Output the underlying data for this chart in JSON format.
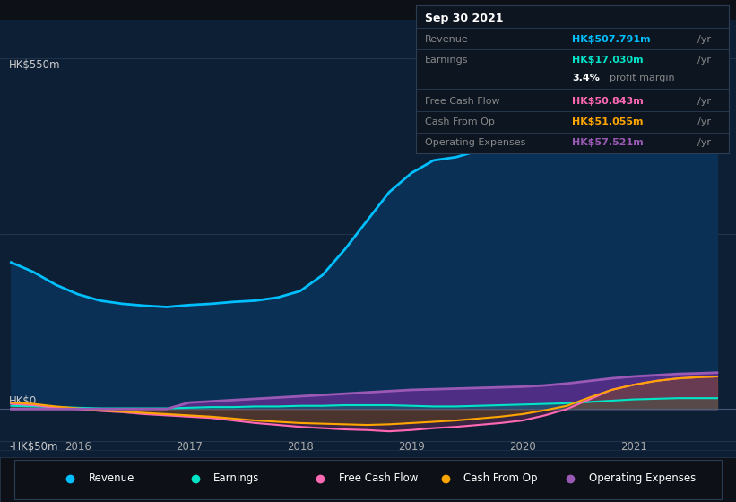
{
  "bg_color": "#0d1117",
  "plot_bg_color": "#0d1f35",
  "ylabel_top": "HK$550m",
  "ylabel_zero": "HK$0",
  "ylabel_neg": "-HK$50m",
  "x_years": [
    2015.4,
    2015.6,
    2015.8,
    2016.0,
    2016.2,
    2016.4,
    2016.6,
    2016.8,
    2017.0,
    2017.2,
    2017.4,
    2017.6,
    2017.8,
    2018.0,
    2018.2,
    2018.4,
    2018.6,
    2018.8,
    2019.0,
    2019.2,
    2019.4,
    2019.6,
    2019.8,
    2020.0,
    2020.2,
    2020.4,
    2020.6,
    2020.8,
    2021.0,
    2021.2,
    2021.4,
    2021.6,
    2021.75
  ],
  "revenue": [
    230,
    215,
    195,
    180,
    170,
    165,
    162,
    160,
    163,
    165,
    168,
    170,
    175,
    185,
    210,
    250,
    295,
    340,
    370,
    390,
    395,
    405,
    415,
    430,
    445,
    455,
    462,
    470,
    490,
    515,
    535,
    542,
    508
  ],
  "earnings": [
    5,
    4,
    3,
    2,
    1,
    1,
    1,
    1,
    2,
    3,
    3,
    4,
    4,
    5,
    5,
    6,
    6,
    6,
    5,
    4,
    4,
    5,
    6,
    7,
    8,
    9,
    11,
    13,
    15,
    16,
    17,
    17,
    17
  ],
  "free_cash_flow": [
    8,
    6,
    2,
    0,
    -3,
    -5,
    -8,
    -10,
    -12,
    -14,
    -18,
    -22,
    -25,
    -28,
    -30,
    -32,
    -33,
    -35,
    -33,
    -30,
    -28,
    -25,
    -22,
    -18,
    -10,
    0,
    15,
    30,
    38,
    44,
    48,
    50,
    51
  ],
  "cash_from_op": [
    10,
    8,
    4,
    1,
    -2,
    -4,
    -6,
    -8,
    -10,
    -12,
    -15,
    -18,
    -20,
    -22,
    -23,
    -24,
    -25,
    -24,
    -22,
    -20,
    -18,
    -15,
    -12,
    -8,
    -2,
    5,
    18,
    30,
    38,
    44,
    48,
    50,
    51
  ],
  "operating_expenses": [
    0,
    0,
    0,
    0,
    0,
    0,
    0,
    0,
    10,
    12,
    14,
    16,
    18,
    20,
    22,
    24,
    26,
    28,
    30,
    31,
    32,
    33,
    34,
    35,
    37,
    40,
    44,
    48,
    51,
    53,
    55,
    56,
    57
  ],
  "revenue_color": "#00bfff",
  "earnings_color": "#00e5c8",
  "free_cash_flow_color": "#ff69b4",
  "cash_from_op_color": "#ffa500",
  "operating_expenses_color": "#9b59b6",
  "info_box": {
    "date": "Sep 30 2021",
    "revenue_label": "Revenue",
    "revenue_value": "HK$507.791m",
    "revenue_color": "#00bfff",
    "earnings_label": "Earnings",
    "earnings_value": "HK$17.030m",
    "earnings_color": "#00e5c8",
    "profit_margin": "3.4%",
    "free_cash_flow_label": "Free Cash Flow",
    "free_cash_flow_value": "HK$50.843m",
    "free_cash_flow_color": "#ff69b4",
    "cash_from_op_label": "Cash From Op",
    "cash_from_op_value": "HK$51.055m",
    "cash_from_op_color": "#ffa500",
    "op_expenses_label": "Operating Expenses",
    "op_expenses_value": "HK$57.521m",
    "op_expenses_color": "#9b59b6"
  },
  "legend": [
    {
      "label": "Revenue",
      "color": "#00bfff"
    },
    {
      "label": "Earnings",
      "color": "#00e5c8"
    },
    {
      "label": "Free Cash Flow",
      "color": "#ff69b4"
    },
    {
      "label": "Cash From Op",
      "color": "#ffa500"
    },
    {
      "label": "Operating Expenses",
      "color": "#9b59b6"
    }
  ],
  "ylim": [
    -75,
    610
  ],
  "xlim": [
    2015.3,
    2021.92
  ]
}
